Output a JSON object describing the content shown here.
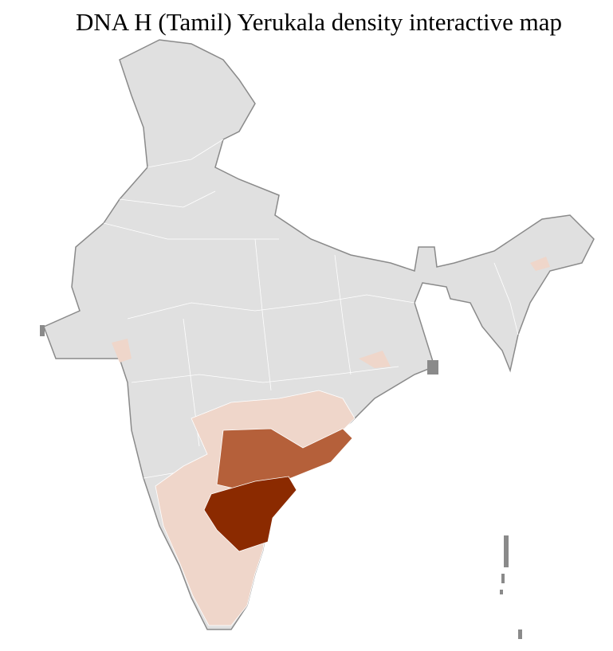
{
  "title": "DNA H (Tamil) Yerukala density interactive map"
}
